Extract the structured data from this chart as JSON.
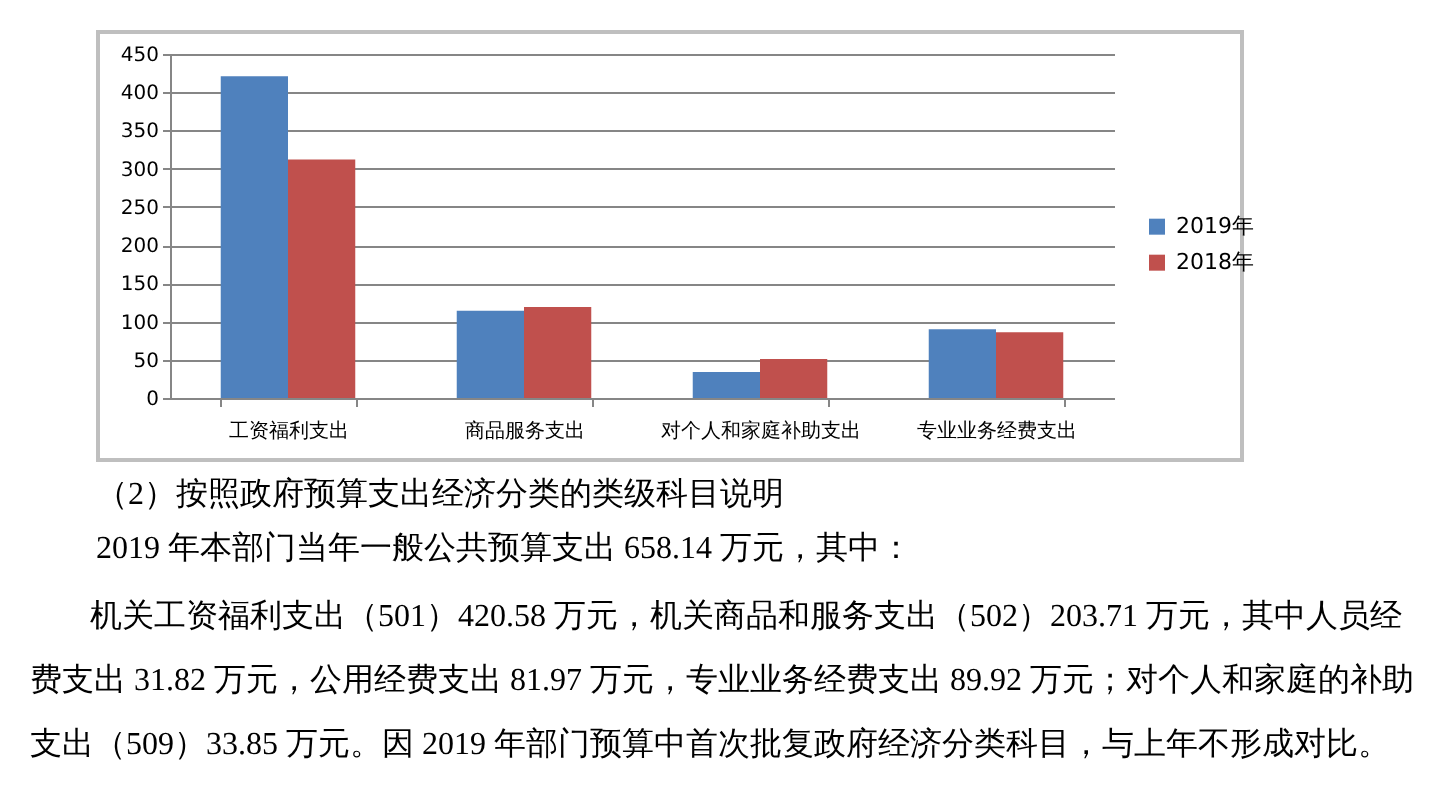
{
  "chart_data": {
    "type": "bar",
    "categories": [
      "工资福利支出",
      "商品服务支出",
      "对个人和家庭补助支出",
      "专业业务经费支出"
    ],
    "series": [
      {
        "name": "2019年",
        "color": "#4f81bd",
        "values": [
          421,
          114,
          34,
          90
        ]
      },
      {
        "name": "2018年",
        "color": "#c0504d",
        "values": [
          312,
          119,
          51,
          86
        ]
      }
    ],
    "ylim": [
      0,
      450
    ],
    "yticks": [
      0,
      50,
      100,
      150,
      200,
      250,
      300,
      350,
      400,
      450
    ],
    "grid": "y",
    "legend": "right",
    "annotations": [
      "（2）按照政府预算支出经济分类的类级科目说明",
      "2019 年本部门当年一般公共预算支出 658.14 万元，其中：",
      "机关工资福利支出（501）420.58 万元，机关商品和服务支出（502）203.71 万元，其中人员经",
      "费支出 31.82 万元，公用经费支出 81.97 万元，专业业务经费支出 89.92 万元；对个人和家庭的补助",
      "支出（509）33.85 万元。因 2019 年部门预算中首次批复政府经济分类科目，与上年不形成对比。"
    ]
  }
}
